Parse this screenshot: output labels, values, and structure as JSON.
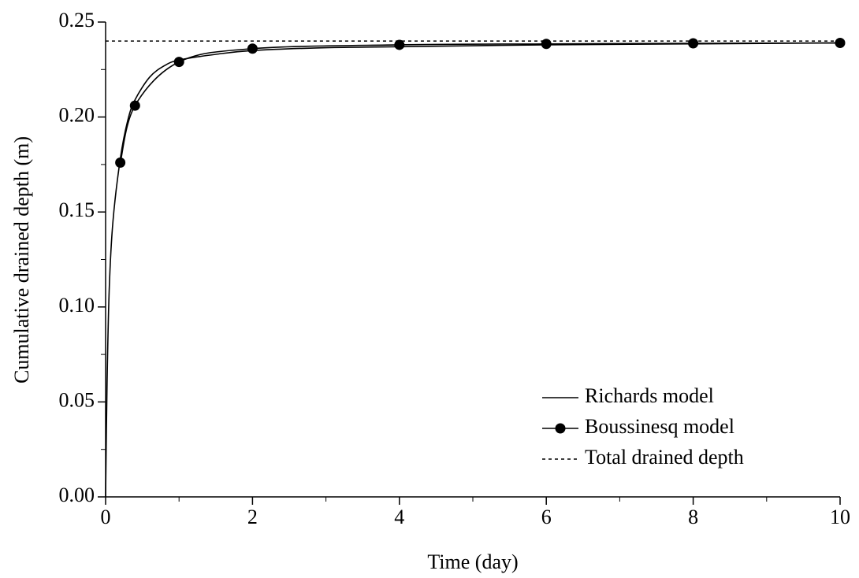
{
  "chart_data": {
    "type": "line",
    "xlabel": "Time (day)",
    "ylabel": "Cumulative drained depth (m)",
    "xlim": [
      0,
      10
    ],
    "ylim": [
      0,
      0.25
    ],
    "xticks": [
      0,
      2,
      4,
      6,
      8,
      10
    ],
    "xminorticks": [
      1,
      3,
      5,
      7,
      9
    ],
    "yticks": [
      {
        "value": 0,
        "label": "0.00"
      },
      0.05,
      {
        "value": 0.1,
        "label": "0.10"
      },
      0.15,
      {
        "value": 0.2,
        "label": "0.20"
      },
      0.25
    ],
    "yminorticks": [
      0.025,
      0.075,
      0.125,
      0.175,
      0.225
    ],
    "legend": "lower right",
    "series": [
      {
        "name": "Richards model",
        "color": "#000000",
        "style": "solid",
        "marker": false,
        "x": [
          0,
          0.02,
          0.05,
          0.1,
          0.2,
          0.3,
          0.4,
          0.6,
          0.8,
          1,
          1.5,
          2,
          3,
          4,
          6,
          8,
          10
        ],
        "values": [
          0,
          0.06,
          0.11,
          0.145,
          0.178,
          0.198,
          0.209,
          0.221,
          0.227,
          0.23,
          0.233,
          0.235,
          0.2365,
          0.237,
          0.238,
          0.2385,
          0.239
        ]
      },
      {
        "name": "Boussinesq model",
        "color": "#000000",
        "style": "solid",
        "marker": true,
        "x": [
          0.2,
          0.4,
          1,
          2,
          4,
          6,
          8,
          10
        ],
        "values": [
          0.176,
          0.206,
          0.229,
          0.236,
          0.238,
          0.2385,
          0.2388,
          0.239
        ]
      },
      {
        "name": "Total drained depth",
        "color": "#000000",
        "style": "dotted",
        "marker": false,
        "x": [
          0,
          10
        ],
        "values": [
          0.24,
          0.24
        ]
      }
    ]
  }
}
